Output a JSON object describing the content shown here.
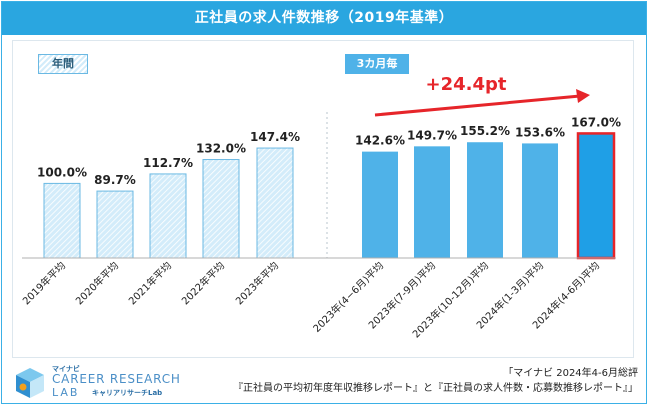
{
  "title": "正社員の求人件数推移（2019年基準）",
  "tags": {
    "annual": "年間",
    "quarterly": "3カ月毎"
  },
  "annotation": "+24.4pt",
  "chart_data": {
    "type": "bar",
    "title": "正社員の求人件数推移（2019年基準）",
    "categories": [
      "2019年平均",
      "2020年平均",
      "2021年平均",
      "2022年平均",
      "2023年平均",
      "2023年(4−6月)平均",
      "2023年(7-9月)平均",
      "2023年(10-12月)平均",
      "2024年(1-3月)平均",
      "2024年(4-6月)平均"
    ],
    "values": [
      100.0,
      89.7,
      112.7,
      132.0,
      147.4,
      142.6,
      149.7,
      155.2,
      153.6,
      167.0
    ],
    "labels": [
      "100.0%",
      "89.7%",
      "112.7%",
      "132.0%",
      "147.4%",
      "142.6%",
      "149.7%",
      "155.2%",
      "153.6%",
      "167.0%"
    ],
    "groups": [
      "annual",
      "annual",
      "annual",
      "annual",
      "annual",
      "quarterly",
      "quarterly",
      "quarterly",
      "quarterly",
      "quarterly"
    ],
    "highlight_index": 9,
    "annotation": "+24.4pt",
    "ylim": [
      0,
      185
    ],
    "colors": {
      "annual_fill": "#d3ecfa",
      "annual_stripe": "#ffffff",
      "annual_border": "#6bb9e3",
      "quarterly": "#4fb2e8",
      "highlight": "#1f9fe6",
      "highlight_border": "#e6252a",
      "arrow": "#e6252a",
      "divider": "#b8c4cc"
    }
  },
  "footer": {
    "logo_small": "マイナビ",
    "logo_line1": "CAREER RESEARCH",
    "logo_line2": "LAB",
    "logo_sub": "キャリアリサーチLab",
    "source_line1": "「マイナビ 2024年4-6月総評",
    "source_line2": "『正社員の平均初年度年収推移レポート』と『正社員の求人件数・応募数推移レポート』」"
  }
}
